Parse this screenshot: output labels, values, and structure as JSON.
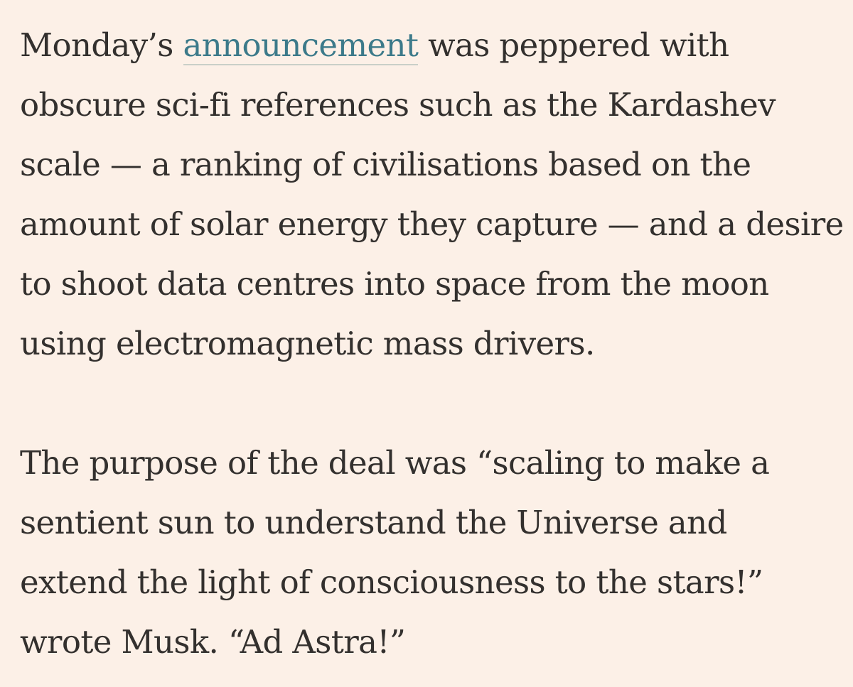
{
  "article": {
    "paragraphs": [
      {
        "lines": [
          {
            "before": "Monday’s ",
            "link": "announcement",
            "after": " was peppered with"
          },
          "obscure sci-fi references such as the Kardashev",
          "scale — a ranking of civilisations based on the",
          "amount of solar energy they capture — and a desire",
          "to shoot data centres into space from the moon",
          "using electromagnetic mass drivers."
        ]
      },
      {
        "lines": [
          "The purpose of the deal was “scaling to make a",
          "sentient sun to understand the Universe and",
          "extend the light of consciousness to the stars!”",
          "wrote Musk. “Ad Astra!”"
        ]
      }
    ]
  },
  "colors": {
    "background": "#fcf0e7",
    "text": "#33302e",
    "link": "#3c7a8a",
    "link_underline": "#c9cfc8"
  }
}
